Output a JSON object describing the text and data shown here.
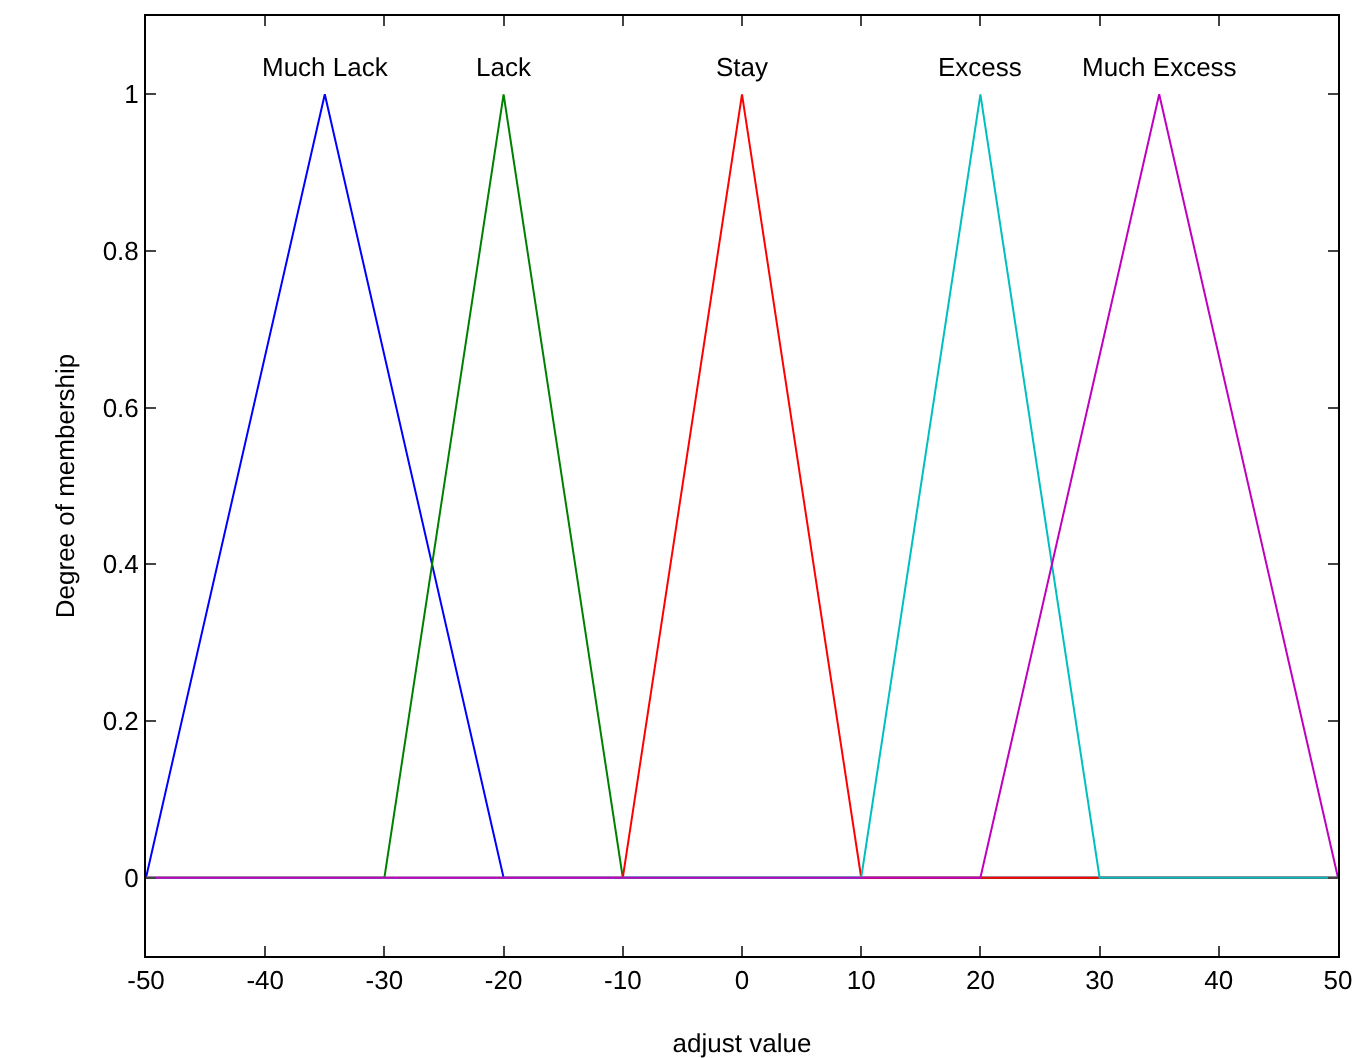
{
  "chart_data": {
    "type": "line",
    "xlabel": "adjust value",
    "ylabel": "Degree of membership",
    "xlim": [
      -50,
      50
    ],
    "xticks": [
      -50,
      -40,
      -30,
      -20,
      -10,
      0,
      10,
      20,
      30,
      40,
      50
    ],
    "ylim": [
      -0.1,
      1.1
    ],
    "yticks": [
      0,
      0.2,
      0.4,
      0.6,
      0.8,
      1
    ],
    "grid": false,
    "legend": false,
    "marker": "none",
    "line_style": "solid",
    "series": [
      {
        "name": "Much Lack",
        "color": "#0000ff",
        "x": [
          -50,
          -35,
          -20,
          50
        ],
        "values": [
          0,
          1,
          0,
          0
        ]
      },
      {
        "name": "Lack",
        "color": "#008000",
        "x": [
          -50,
          -30,
          -20,
          -10,
          50
        ],
        "values": [
          0,
          0,
          1,
          0,
          0
        ]
      },
      {
        "name": "Stay",
        "color": "#ff0000",
        "x": [
          -50,
          -10,
          0,
          10,
          50
        ],
        "values": [
          0,
          0,
          1,
          0,
          0
        ]
      },
      {
        "name": "Excess",
        "color": "#00bfbf",
        "x": [
          -50,
          10,
          20,
          30,
          50
        ],
        "values": [
          0,
          0,
          1,
          0,
          0
        ]
      },
      {
        "name": "Much Excess",
        "color": "#bf00bf",
        "x": [
          -50,
          20,
          35,
          50
        ],
        "values": [
          0,
          0,
          1,
          0
        ]
      }
    ]
  }
}
